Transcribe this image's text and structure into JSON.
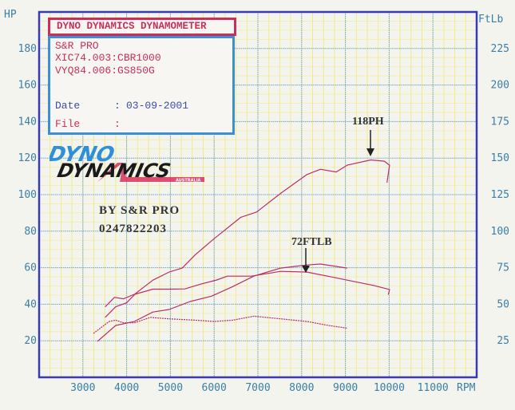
{
  "header": {
    "title": "DYNO DYNAMICS DYNAMOMETER",
    "lines": [
      "S&R PRO",
      "XIC74.003:CBR1000",
      "VYQ84.006:GS850G"
    ],
    "date_label": "Date",
    "date_sep": ":",
    "date_value": "03-09-2001",
    "file_label": "File",
    "file_sep": ":"
  },
  "logo": {
    "top": "DYNO",
    "bottom": "DYNAMICS",
    "sub": "AUSTRALIA"
  },
  "stamp": {
    "line1": "BY S&R PRO",
    "line2": "0247822203"
  },
  "annotations": {
    "hp_peak": "118PH",
    "torque_peak": "72FTLB"
  },
  "colors": {
    "frame": "#3a3ab0",
    "grid": "#6ea4e8",
    "minor_grid": "#f3e98a",
    "curve": "#b8306a",
    "axis_text": "#3a7fa8"
  },
  "chart_data": {
    "type": "line",
    "x_label": "RPM",
    "y_left_label": "HP",
    "y_right_label": "FtLb",
    "xlim": [
      2000,
      12000
    ],
    "ylim_left": [
      0,
      200
    ],
    "ylim_right": [
      0,
      250
    ],
    "grid": true,
    "x_ticks": [
      3000,
      4000,
      5000,
      6000,
      7000,
      8000,
      9000,
      10000,
      11000
    ],
    "y_left_ticks": [
      20,
      40,
      60,
      80,
      100,
      120,
      140,
      160,
      180
    ],
    "y_right_ticks": [
      25,
      50,
      75,
      100,
      125,
      150,
      175,
      200,
      225
    ],
    "series": [
      {
        "axis": "left",
        "points": [
          [
            3510,
            32.8
          ],
          [
            3750,
            38.6
          ],
          [
            4000,
            40.8
          ],
          [
            4210,
            46.0
          ],
          [
            4600,
            53.2
          ],
          [
            4970,
            57.6
          ],
          [
            5270,
            59.8
          ],
          [
            5570,
            67.1
          ],
          [
            6000,
            75.9
          ],
          [
            6610,
            87.6
          ],
          [
            6970,
            90.5
          ],
          [
            7520,
            100.7
          ],
          [
            8120,
            111.0
          ],
          [
            8430,
            113.9
          ],
          [
            8790,
            112.4
          ],
          [
            9040,
            116.1
          ],
          [
            9580,
            119.0
          ],
          [
            9890,
            118.3
          ],
          [
            10010,
            116.1
          ],
          [
            9950,
            106.6
          ]
        ]
      },
      {
        "axis": "right",
        "points": [
          [
            3510,
            48.2
          ],
          [
            3720,
            54.7
          ],
          [
            3930,
            53.7
          ],
          [
            4150,
            56.5
          ],
          [
            4600,
            60.3
          ],
          [
            4970,
            60.3
          ],
          [
            5330,
            60.5
          ],
          [
            5700,
            63.8
          ],
          [
            6060,
            66.6
          ],
          [
            6300,
            69.2
          ],
          [
            6850,
            69.2
          ],
          [
            7520,
            72.5
          ],
          [
            8120,
            72.0
          ],
          [
            8730,
            68.4
          ],
          [
            9040,
            66.5
          ],
          [
            9640,
            62.9
          ],
          [
            10010,
            60.1
          ],
          [
            9980,
            56.5
          ]
        ]
      },
      {
        "axis": "left",
        "points": [
          [
            3330,
            19.6
          ],
          [
            3750,
            28.4
          ],
          [
            4180,
            30.6
          ],
          [
            4600,
            35.7
          ],
          [
            4970,
            37.1
          ],
          [
            5450,
            41.5
          ],
          [
            5940,
            44.4
          ],
          [
            6420,
            49.6
          ],
          [
            6910,
            55.4
          ],
          [
            7520,
            59.8
          ],
          [
            8120,
            61.5
          ],
          [
            8430,
            62.0
          ],
          [
            9040,
            59.8
          ]
        ]
      },
      {
        "axis": "right",
        "points": [
          [
            3240,
            30.0
          ],
          [
            3600,
            38.2
          ],
          [
            3750,
            39.1
          ],
          [
            3930,
            37.3
          ],
          [
            4180,
            37.3
          ],
          [
            4540,
            41.0
          ],
          [
            4970,
            40.0
          ],
          [
            5570,
            39.1
          ],
          [
            6000,
            38.2
          ],
          [
            6420,
            39.1
          ],
          [
            6910,
            41.8
          ],
          [
            7520,
            40.0
          ],
          [
            8120,
            38.2
          ],
          [
            8610,
            35.5
          ],
          [
            9040,
            33.6
          ]
        ]
      }
    ]
  }
}
